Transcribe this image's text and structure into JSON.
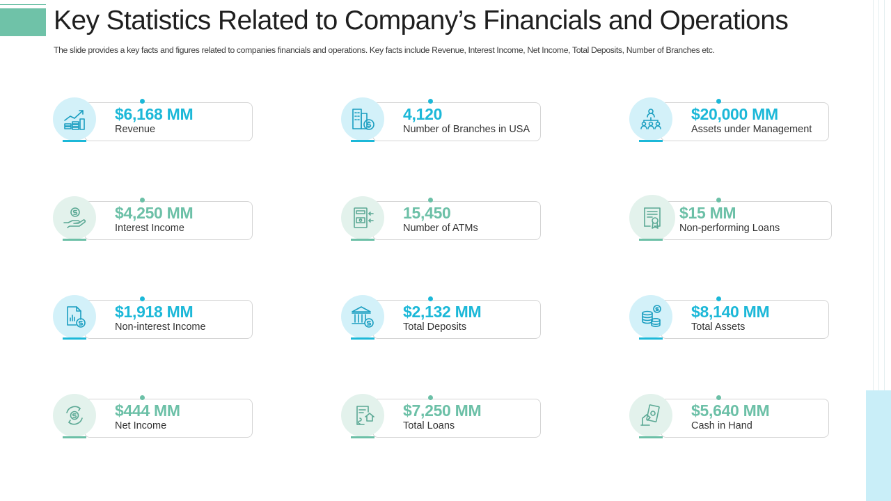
{
  "header": {
    "title": "Key Statistics Related to Company’s Financials and Operations",
    "subtitle": "The slide provides a key facts and figures related to companies financials and operations. Key facts include Revenue, Interest Income, Net Income, Total Deposits, Number of Branches etc."
  },
  "colors": {
    "accent_blue": "#1cb8d8",
    "accent_green": "#6cc0a7"
  },
  "stats": [
    {
      "value": "$6,168 MM",
      "label": "Revenue",
      "icon": "revenue-chart-coins-icon",
      "theme": "blue"
    },
    {
      "value": "4,120",
      "label": "Number of Branches in USA",
      "icon": "buildings-dollar-icon",
      "theme": "blue"
    },
    {
      "value": "$20,000 MM",
      "label": "Assets under Management",
      "icon": "org-chart-icon",
      "theme": "blue"
    },
    {
      "value": "$4,250 MM",
      "label": "Interest Income",
      "icon": "hand-dollar-icon",
      "theme": "green"
    },
    {
      "value": "15,450",
      "label": "Number of ATMs",
      "icon": "atm-icon",
      "theme": "green"
    },
    {
      "value": "$15 MM",
      "label": "Non-performing Loans",
      "icon": "certificate-icon",
      "theme": "green"
    },
    {
      "value": "$1,918 MM",
      "label": "Non-interest Income",
      "icon": "document-chart-dollar-icon",
      "theme": "blue"
    },
    {
      "value": "$2,132 MM",
      "label": "Total Deposits",
      "icon": "bank-dollar-icon",
      "theme": "blue"
    },
    {
      "value": "$8,140 MM",
      "label": "Total Assets",
      "icon": "coin-stack-icon",
      "theme": "blue"
    },
    {
      "value": "$444 MM",
      "label": "Net Income",
      "icon": "dollar-cycle-icon",
      "theme": "green"
    },
    {
      "value": "$7,250 MM",
      "label": "Total Loans",
      "icon": "loan-document-house-icon",
      "theme": "green"
    },
    {
      "value": "$5,640 MM",
      "label": "Cash in Hand",
      "icon": "hand-cash-icon",
      "theme": "green"
    }
  ]
}
